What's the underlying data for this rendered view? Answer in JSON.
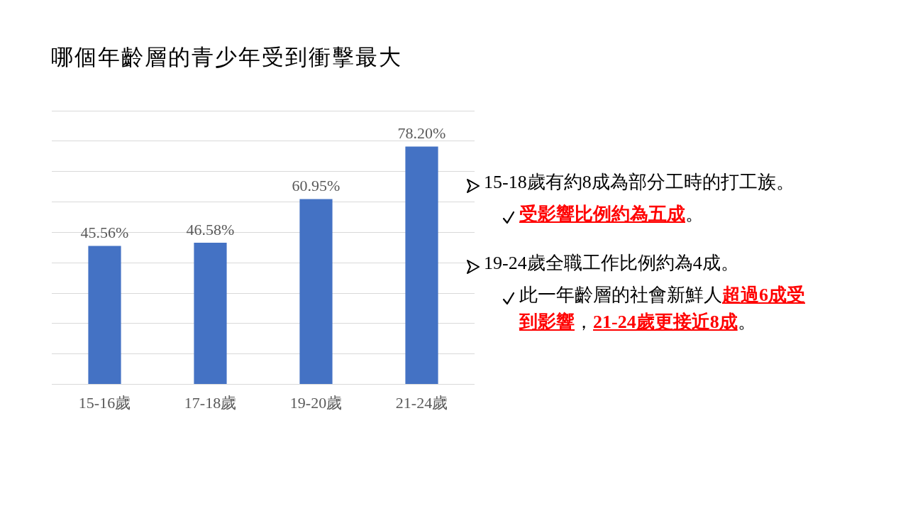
{
  "chart_data": {
    "type": "bar",
    "title": "哪個年齡層的青少年受到衝擊最大",
    "categories": [
      "15-16歲",
      "17-18歲",
      "19-20歲",
      "21-24歲"
    ],
    "values": [
      45.56,
      46.58,
      60.95,
      78.2
    ],
    "value_labels": [
      "45.56%",
      "46.58%",
      "60.95%",
      "78.20%"
    ],
    "color": "#4472c4",
    "ylim": [
      0,
      90
    ],
    "tick_labels": "x",
    "grid": "y",
    "annotations": [
      "15-18歲有約8成為部分工時的打工族。",
      "受影響比例約為五成",
      "。",
      "19-24歲全職工作比例約為4成。",
      "此一年齡層的社會新鮮人",
      "超過6成受到影響",
      "，",
      "21-24歲更接近8成",
      "。"
    ]
  }
}
